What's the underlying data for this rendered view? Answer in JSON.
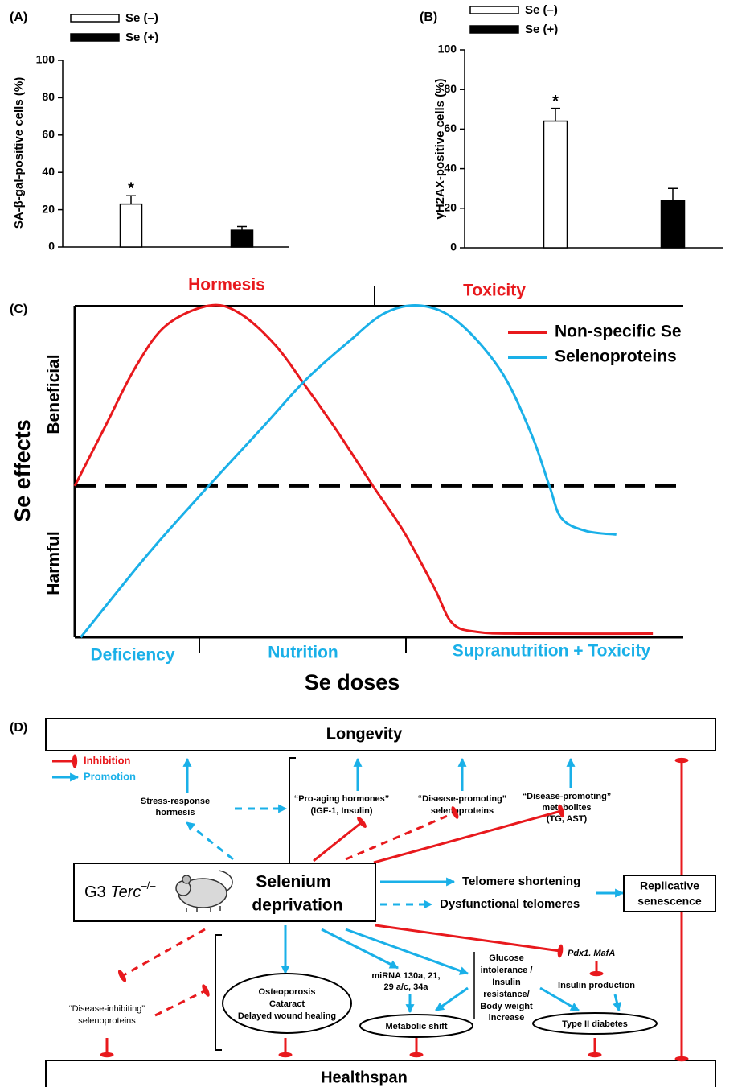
{
  "chart_data": [
    {
      "type": "bar",
      "panel": "(A)",
      "ylabel": "SA-β-gal-positive cells (%)",
      "categories": [
        null
      ],
      "series": [
        {
          "name": "Se (–)",
          "color": "#ffffff",
          "values": [
            23
          ],
          "errors": [
            4.5
          ],
          "significance": [
            "*"
          ]
        },
        {
          "name": "Se (+)",
          "color": "#000000",
          "values": [
            9
          ],
          "errors": [
            2
          ]
        }
      ],
      "ylim": [
        0,
        100
      ],
      "yticks": [
        0,
        20,
        40,
        60,
        80,
        100
      ]
    },
    {
      "type": "bar",
      "panel": "(B)",
      "ylabel": "γH2AX-positive cells (%)",
      "categories": [
        null
      ],
      "series": [
        {
          "name": "Se (–)",
          "color": "#ffffff",
          "values": [
            64
          ],
          "errors": [
            6.5
          ],
          "significance": [
            "*"
          ]
        },
        {
          "name": "Se (+)",
          "color": "#000000",
          "values": [
            24
          ],
          "errors": [
            6
          ]
        }
      ],
      "ylim": [
        0,
        100
      ],
      "yticks": [
        0,
        20,
        40,
        60,
        80,
        100
      ]
    },
    {
      "type": "line",
      "panel": "(C)",
      "xlabel": "Se doses",
      "ylabel": "Se effects",
      "top_labels": [
        "Hormesis",
        "Toxicity"
      ],
      "x_region_labels": [
        "Deficiency",
        "Nutrition",
        "Supranutrition + Toxicity"
      ],
      "y_region_labels": [
        "Beneficial",
        "Harmful"
      ],
      "xlim": [
        0,
        100
      ],
      "ylim": [
        -84,
        100
      ],
      "hline": 0,
      "series": [
        {
          "name": "Non-specific Se",
          "color": "#e8191d",
          "x": [
            0,
            5,
            10,
            15,
            22,
            27,
            33,
            38,
            43,
            49,
            54,
            59,
            62,
            66,
            74,
            95
          ],
          "values": [
            0,
            33,
            66,
            89,
            100,
            96,
            78,
            55,
            31,
            0,
            -25,
            -56,
            -76,
            -81,
            -82,
            -82
          ]
        },
        {
          "name": "Selenoproteins",
          "color": "#1ab0e8",
          "x": [
            1,
            12,
            22,
            31,
            38,
            45,
            51,
            57,
            63,
            70,
            75,
            78,
            80,
            84,
            89
          ],
          "values": [
            -84,
            -38,
            0,
            33,
            59,
            80,
            96,
            100,
            91,
            64,
            29,
            0,
            -18,
            -25,
            -27
          ]
        }
      ]
    }
  ],
  "diagram": {
    "panel": "(D)",
    "top": "Longevity",
    "bottom": "Healthspan",
    "legend": [
      "Inhibition",
      "Promotion"
    ],
    "stress": [
      "Stress-response",
      "hormesis"
    ],
    "hormones": [
      "“Pro-aging hormones”",
      "(IGF-1, Insulin)"
    ],
    "promoting_selenoproteins": [
      "“Disease-promoting”",
      "selenoproteins"
    ],
    "metabolites": [
      "“Disease-promoting”",
      "metabolites",
      "(TG, AST)"
    ],
    "center": {
      "strain": "G3",
      "gene": "Terc",
      "genotype": "–/–",
      "lines": [
        "Selenium",
        "deprivation"
      ]
    },
    "telomere": [
      "Telomere shortening",
      "Dysfunctional telomeres"
    ],
    "senescence": [
      "Replicative",
      "senescence"
    ],
    "genes": "Pdx1. MafA",
    "insulin": "Insulin production",
    "diabetes": "Type II diabetes",
    "glucose": [
      "Glucose",
      "intolerance /",
      "Insulin",
      "resistance/",
      "Body weight",
      "increase"
    ],
    "mirna": [
      "miRNA 130a, 21,",
      "29 a/c, 34a"
    ],
    "metabolic": "Metabolic shift",
    "aging": [
      "Osteoporosis",
      "Cataract",
      "Delayed wound healing"
    ],
    "inhibiting_selenoproteins": [
      "“Disease-inhibiting”",
      "selenoproteins"
    ]
  }
}
